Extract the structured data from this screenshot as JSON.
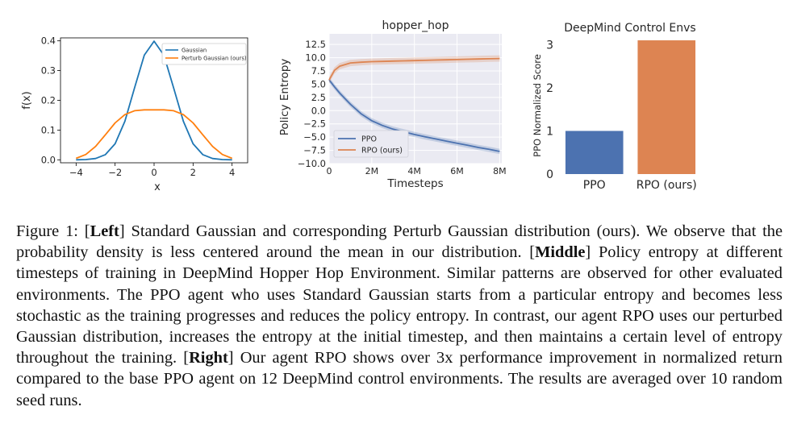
{
  "chart_data": [
    {
      "type": "line",
      "title": "",
      "xlabel": "x",
      "ylabel": "f(x)",
      "xlim": [
        -4.8,
        4.8
      ],
      "ylim": [
        -0.01,
        0.41
      ],
      "xticks": [
        -4,
        -2,
        0,
        2,
        4
      ],
      "xtick_labels": [
        "−4",
        "−2",
        "0",
        "2",
        "4"
      ],
      "yticks": [
        0.0,
        0.1,
        0.2,
        0.3,
        0.4
      ],
      "ytick_labels": [
        "0.0",
        "0.1",
        "0.2",
        "0.3",
        "0.4"
      ],
      "legend_position": "top-right",
      "grid": false,
      "series": [
        {
          "name": "Gaussian",
          "color": "#1f77b4",
          "x": [
            -4.0,
            -3.5,
            -3.0,
            -2.5,
            -2.0,
            -1.5,
            -1.0,
            -0.5,
            0.0,
            0.5,
            1.0,
            1.5,
            2.0,
            2.5,
            3.0,
            3.5,
            4.0
          ],
          "y": [
            0.0001,
            0.0009,
            0.0044,
            0.0175,
            0.054,
            0.1295,
            0.242,
            0.352,
            0.399,
            0.352,
            0.242,
            0.1295,
            0.054,
            0.0175,
            0.0044,
            0.0009,
            0.0001
          ]
        },
        {
          "name": "Perturb Gaussian (ours)",
          "color": "#ff7f0e",
          "x": [
            -4.0,
            -3.5,
            -3.0,
            -2.5,
            -2.0,
            -1.5,
            -1.0,
            -0.5,
            0.0,
            0.5,
            1.0,
            1.5,
            2.0,
            2.5,
            3.0,
            3.5,
            4.0
          ],
          "y": [
            0.005,
            0.018,
            0.045,
            0.084,
            0.124,
            0.152,
            0.165,
            0.168,
            0.168,
            0.168,
            0.165,
            0.152,
            0.124,
            0.084,
            0.045,
            0.018,
            0.005
          ]
        }
      ]
    },
    {
      "type": "line",
      "title": "hopper_hop",
      "xlabel": "Timesteps",
      "ylabel": "Policy Entropy",
      "xlim": [
        0,
        8.1
      ],
      "ylim": [
        -10.0,
        14.5
      ],
      "xticks": [
        0,
        2,
        4,
        6,
        8
      ],
      "xtick_labels": [
        "0",
        "2M",
        "4M",
        "6M",
        "8M"
      ],
      "yticks": [
        -10.0,
        -7.5,
        -5.0,
        -2.5,
        0.0,
        2.5,
        5.0,
        7.5,
        10.0,
        12.5
      ],
      "ytick_labels": [
        "−10.0",
        "−7.5",
        "−5.0",
        "−2.5",
        "0.0",
        "2.5",
        "5.0",
        "7.5",
        "10.0",
        "12.5"
      ],
      "legend_position": "lower-left",
      "grid": true,
      "series": [
        {
          "name": "PPO",
          "color": "#4c72b0",
          "x": [
            0,
            0.25,
            0.5,
            1,
            1.5,
            2,
            2.5,
            3,
            3.5,
            4,
            4.5,
            5,
            5.5,
            6,
            6.5,
            7,
            7.5,
            8
          ],
          "y": [
            5.8,
            4.5,
            3.3,
            1.2,
            -0.6,
            -1.9,
            -2.8,
            -3.5,
            -4.0,
            -4.5,
            -4.95,
            -5.35,
            -5.75,
            -6.15,
            -6.55,
            -6.95,
            -7.3,
            -7.7
          ],
          "band": 0.5
        },
        {
          "name": "RPO (ours)",
          "color": "#dd8452",
          "x": [
            0,
            0.25,
            0.5,
            1,
            1.5,
            2,
            2.5,
            3,
            3.5,
            4,
            4.5,
            5,
            5.5,
            6,
            6.5,
            7,
            7.5,
            8
          ],
          "y": [
            5.8,
            7.6,
            8.4,
            9.0,
            9.15,
            9.25,
            9.3,
            9.35,
            9.4,
            9.45,
            9.5,
            9.55,
            9.6,
            9.65,
            9.7,
            9.75,
            9.8,
            9.85
          ],
          "band": 0.6
        }
      ]
    },
    {
      "type": "bar",
      "title": "DeepMind Control Envs",
      "xlabel": "",
      "ylabel": "PPO Normalized Score",
      "ylim": [
        0,
        3.25
      ],
      "yticks": [
        0,
        1,
        2,
        3
      ],
      "ytick_labels": [
        "0",
        "1",
        "2",
        "3"
      ],
      "grid": false,
      "categories": [
        "PPO",
        "RPO (ours)"
      ],
      "values": [
        1.0,
        3.1
      ],
      "colors": [
        "#4c72b0",
        "#dd8452"
      ]
    }
  ],
  "caption": {
    "figure_label": "Figure 1:",
    "left_tag": "Left",
    "left_text": "Standard Gaussian and corresponding Perturb Gaussian distribution (ours). We observe that the probability density is less centered around the mean in our distribution.",
    "middle_tag": "Middle",
    "middle_text": "Policy entropy at different timesteps of training in DeepMind Hopper Hop Environment. Similar patterns are observed for other evaluated environments. The PPO agent who uses Standard Gaussian starts from a particular entropy and becomes less stochastic as the training progresses and reduces the policy entropy. In contrast, our agent RPO uses our perturbed Gaussian distribution, increases the entropy at the initial timestep, and then maintains a certain level of entropy throughout the training.",
    "right_tag": "Right",
    "right_text": "Our agent RPO shows over 3x performance improvement in normalized return compared to the base PPO agent on 12 DeepMind control environments. The results are averaged over 10 random seed runs."
  }
}
